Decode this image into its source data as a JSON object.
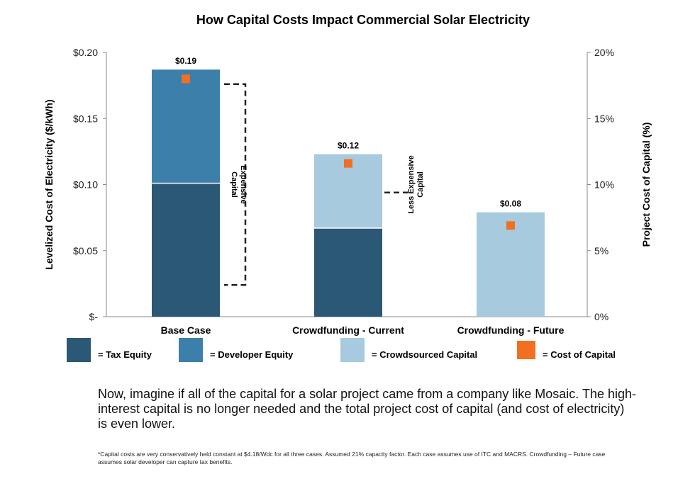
{
  "chart_data": {
    "type": "bar",
    "stacked": true,
    "title": "How Capital Costs Impact Commercial Solar Electricity",
    "ylabel": "Levelized Cost of Electricity ($/kWh)",
    "y2label": "Project Cost of Capital (%)",
    "ylim": [
      0,
      0.2
    ],
    "y2lim": [
      0,
      20
    ],
    "yticks": [
      0,
      0.05,
      0.1,
      0.15,
      0.2
    ],
    "ytick_labels": [
      "$-",
      "$0.05",
      "$0.10",
      "$0.15",
      "$0.20"
    ],
    "y2ticks": [
      0,
      5,
      10,
      15,
      20
    ],
    "y2tick_labels": [
      "0%",
      "5%",
      "10%",
      "15%",
      "20%"
    ],
    "categories": [
      "Base Case",
      "Crowdfunding - Current",
      "Crowdfunding - Future"
    ],
    "series": [
      {
        "name": "= Tax Equity",
        "color": "#2b5874",
        "values": [
          0.101,
          0.067,
          0
        ]
      },
      {
        "name": "= Developer Equity",
        "color": "#3d7fab",
        "values": [
          0.086,
          0,
          0
        ]
      },
      {
        "name": "= Crowdsourced Capital",
        "color": "#a7cade",
        "values": [
          0,
          0.056,
          0.079
        ]
      }
    ],
    "marker_series": {
      "name": "= Cost of Capital",
      "color": "#f26f21",
      "axis": "y2",
      "values": [
        18,
        11.6,
        6.9
      ]
    },
    "totals": [
      "$0.19",
      "$0.12",
      "$0.08"
    ],
    "annotations": [
      {
        "lines": [
          "Expensive",
          "Capital"
        ]
      },
      {
        "lines": [
          "Less Expensive",
          "Capital"
        ]
      }
    ],
    "grid": false,
    "legend_position": "bottom"
  },
  "narrative": "Now, imagine if all of the capital for a solar project came from a company like Mosaic. The high-interest capital is no longer needed and the total project cost of capital (and cost of electricity) is even lower.",
  "footnote": "*Capital costs are very conservatively held constant at $4.18/Wdc for all three cases. Assumed 21% capacity factor. Each case assumes use of ITC and MACRS. Crowdfunding – Future case assumes solar developer can capture tax benefits."
}
